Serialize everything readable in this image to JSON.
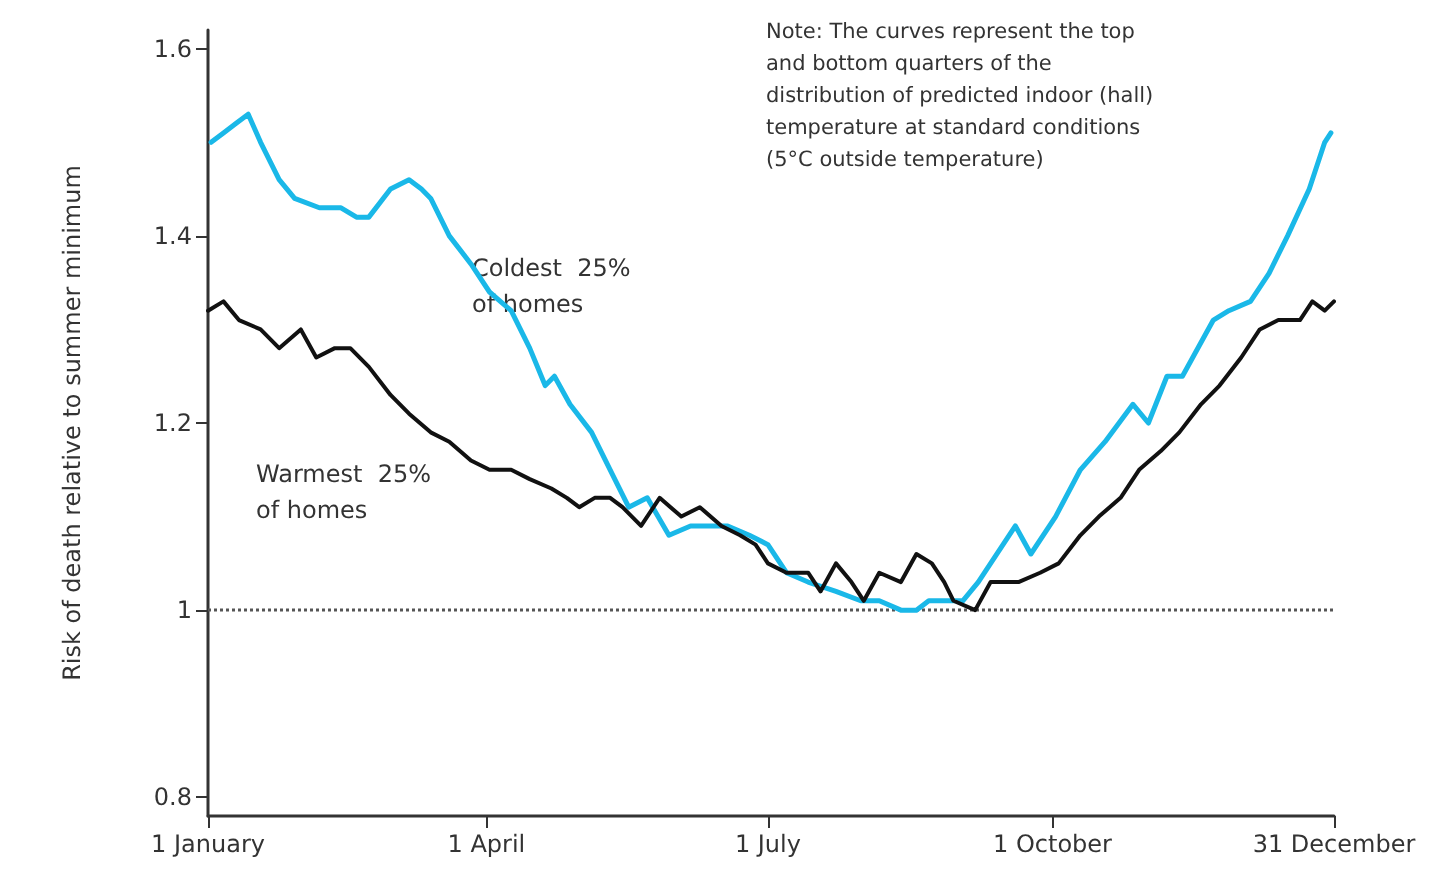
{
  "chart_data": {
    "type": "line",
    "ylabel": "Risk of death relative to summer minimum",
    "xlim": [
      "--01-01",
      "--12-31"
    ],
    "xticks": [
      {
        "value": "--01-01",
        "label": "1 January"
      },
      {
        "value": "--04-01",
        "label": "1 April"
      },
      {
        "value": "--07-01",
        "label": "1 July"
      },
      {
        "value": "--10-01",
        "label": "1 October"
      },
      {
        "value": "--12-31",
        "label": "31 December"
      }
    ],
    "ylim": [
      0.78,
      1.62
    ],
    "yticks": [
      {
        "value": 0.8,
        "label": "0.8"
      },
      {
        "value": 1,
        "label": "1"
      },
      {
        "value": 1.2,
        "label": "1.2"
      },
      {
        "value": 1.4,
        "label": "1.4"
      },
      {
        "value": 1.6,
        "label": "1.6"
      }
    ],
    "marker": "none",
    "line_style": "solid",
    "series": [
      {
        "color": "#1ab8e8",
        "x": [
          "--01-02",
          "--01-06",
          "--01-10",
          "--01-14",
          "--01-18",
          "--01-24",
          "--01-29",
          "--02-06",
          "--02-13",
          "--02-18",
          "--02-22",
          "--03-01",
          "--03-07",
          "--03-11",
          "--03-14",
          "--03-20",
          "--03-27",
          "--04-02",
          "--04-09",
          "--04-15",
          "--04-20",
          "--04-23",
          "--04-28",
          "--05-05",
          "--05-11",
          "--05-17",
          "--05-23",
          "--05-30",
          "--06-06",
          "--06-12",
          "--06-18",
          "--06-25",
          "--07-01",
          "--07-07",
          "--07-14",
          "--07-23",
          "--07-31",
          "--08-06",
          "--08-13",
          "--08-18",
          "--08-22",
          "--08-29",
          "--09-02",
          "--09-07",
          "--09-19",
          "--09-24",
          "--10-02",
          "--10-10",
          "--10-18",
          "--10-27",
          "--11-01",
          "--11-07",
          "--11-12",
          "--11-22",
          "--11-27",
          "--12-04",
          "--12-10",
          "--12-16",
          "--12-23",
          "--12-28",
          "--12-30"
        ],
        "values": [
          1.5,
          1.51,
          1.52,
          1.53,
          1.5,
          1.46,
          1.44,
          1.43,
          1.43,
          1.42,
          1.42,
          1.45,
          1.46,
          1.45,
          1.44,
          1.4,
          1.37,
          1.34,
          1.32,
          1.28,
          1.24,
          1.25,
          1.22,
          1.19,
          1.15,
          1.11,
          1.12,
          1.08,
          1.09,
          1.09,
          1.09,
          1.08,
          1.07,
          1.04,
          1.03,
          1.02,
          1.01,
          1.01,
          1.0,
          1.0,
          1.01,
          1.01,
          1.01,
          1.03,
          1.09,
          1.06,
          1.1,
          1.15,
          1.18,
          1.22,
          1.2,
          1.25,
          1.25,
          1.31,
          1.32,
          1.33,
          1.36,
          1.4,
          1.45,
          1.5,
          1.51
        ]
      },
      {
        "color": "#111111",
        "x": [
          "--01-01",
          "--01-06",
          "--01-11",
          "--01-18",
          "--01-24",
          "--01-31",
          "--02-05",
          "--02-11",
          "--02-16",
          "--02-22",
          "--03-01",
          "--03-07",
          "--03-14",
          "--03-20",
          "--03-27",
          "--04-02",
          "--04-09",
          "--04-15",
          "--04-22",
          "--04-27",
          "--05-01",
          "--05-06",
          "--05-11",
          "--05-15",
          "--05-21",
          "--05-27",
          "--06-03",
          "--06-09",
          "--06-16",
          "--06-22",
          "--06-27",
          "--07-01",
          "--07-07",
          "--07-14",
          "--07-18",
          "--07-23",
          "--07-28",
          "--08-01",
          "--08-06",
          "--08-13",
          "--08-18",
          "--08-23",
          "--08-27",
          "--08-30",
          "--09-06",
          "--09-11",
          "--09-20",
          "--09-27",
          "--10-03",
          "--10-10",
          "--10-16",
          "--10-23",
          "--10-29",
          "--11-05",
          "--11-11",
          "--11-18",
          "--11-24",
          "--12-01",
          "--12-07",
          "--12-13",
          "--12-20",
          "--12-24",
          "--12-28",
          "--12-31"
        ],
        "values": [
          1.32,
          1.33,
          1.31,
          1.3,
          1.28,
          1.3,
          1.27,
          1.28,
          1.28,
          1.26,
          1.23,
          1.21,
          1.19,
          1.18,
          1.16,
          1.15,
          1.15,
          1.14,
          1.13,
          1.12,
          1.11,
          1.12,
          1.12,
          1.11,
          1.09,
          1.12,
          1.1,
          1.11,
          1.09,
          1.08,
          1.07,
          1.05,
          1.04,
          1.04,
          1.02,
          1.05,
          1.03,
          1.01,
          1.04,
          1.03,
          1.06,
          1.05,
          1.03,
          1.01,
          1.0,
          1.03,
          1.03,
          1.04,
          1.05,
          1.08,
          1.1,
          1.12,
          1.15,
          1.17,
          1.19,
          1.22,
          1.24,
          1.27,
          1.3,
          1.31,
          1.31,
          1.33,
          1.32,
          1.33
        ]
      }
    ],
    "ref_lines": [
      {
        "axis": "y",
        "value": 1,
        "color": "#555555",
        "line_style": "dotted"
      }
    ],
    "annotations": [
      "Coldest  25%\nof homes",
      "Warmest  25%\nof homes",
      "Note: The curves represent the top\nand bottom quarters of the\ndistribution of predicted indoor (hall)\ntemperature at standard conditions\n(5°C outside temperature)"
    ]
  }
}
